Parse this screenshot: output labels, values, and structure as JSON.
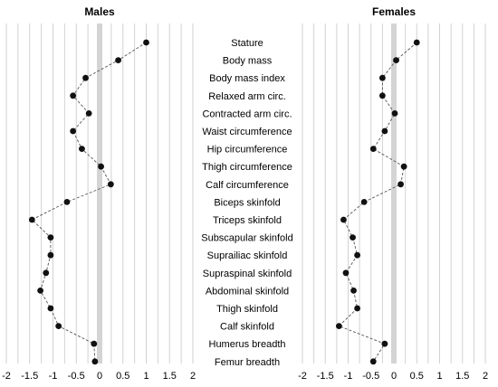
{
  "chart_data": [
    {
      "type": "scatter",
      "title": "Males",
      "xlim": [
        -2,
        2
      ],
      "x_ticks": [
        "-2",
        "-1.5",
        "-1",
        "-0.5",
        "0",
        "0.5",
        "1",
        "1.5",
        "2"
      ],
      "grid": true,
      "connected": true,
      "marker_color": "#111111",
      "line_color": "#555555",
      "zero_band_color": "#d4d4d4",
      "categories": [
        "Stature",
        "Body mass",
        "Body mass index",
        "Relaxed arm circ.",
        "Contracted arm circ.",
        "Waist circumference",
        "Hip circumference",
        "Thigh circumference",
        "Calf circumference",
        "Biceps skinfold",
        "Triceps skinfold",
        "Subscapular skinfold",
        "Suprailiac skinfold",
        "Supraspinal skinfold",
        "Abdominal skinfold",
        "Thigh skinfold",
        "Calf skinfold",
        "Humerus breadth",
        "Femur breadth"
      ],
      "values": [
        1.0,
        0.4,
        -0.3,
        -0.57,
        -0.23,
        -0.57,
        -0.38,
        0.03,
        0.24,
        -0.7,
        -1.45,
        -1.05,
        -1.05,
        -1.15,
        -1.27,
        -1.05,
        -0.88,
        -0.12,
        -0.1
      ]
    },
    {
      "type": "scatter",
      "title": "Females",
      "xlim": [
        -2,
        2
      ],
      "x_ticks": [
        "-2",
        "-1.5",
        "-1",
        "-0.5",
        "0",
        "0.5",
        "1",
        "1.5",
        "2"
      ],
      "grid": true,
      "connected": true,
      "marker_color": "#111111",
      "line_color": "#555555",
      "zero_band_color": "#d4d4d4",
      "categories": [
        "Stature",
        "Body mass",
        "Body mass index",
        "Relaxed arm circ.",
        "Contracted arm circ.",
        "Waist circumference",
        "Hip circumference",
        "Thigh circumference",
        "Calf circumference",
        "Biceps skinfold",
        "Triceps skinfold",
        "Subscapular skinfold",
        "Suprailiac skinfold",
        "Supraspinal skinfold",
        "Abdominal skinfold",
        "Thigh skinfold",
        "Calf skinfold",
        "Humerus breadth",
        "Femur breadth"
      ],
      "values": [
        0.5,
        0.05,
        -0.25,
        -0.25,
        0.02,
        -0.2,
        -0.45,
        0.22,
        0.15,
        -0.65,
        -1.1,
        -0.9,
        -0.8,
        -1.05,
        -0.88,
        -0.8,
        -1.2,
        -0.2,
        -0.45
      ]
    }
  ]
}
